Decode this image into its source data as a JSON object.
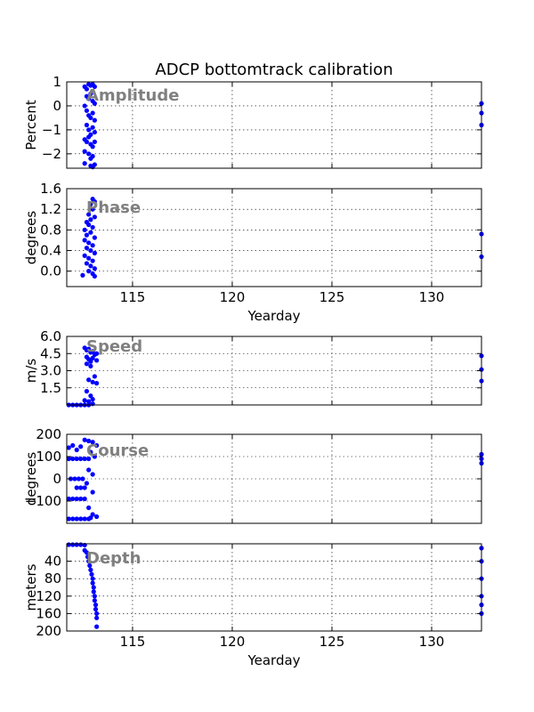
{
  "figure": {
    "title": "ADCP bottomtrack calibration",
    "colors": {
      "marker": "#0000ff",
      "panel_label": "#808080",
      "axis": "#000000",
      "grid": "#000000"
    }
  },
  "chart_data": [
    {
      "type": "scatter",
      "label": "Amplitude",
      "ylabel": "Percent",
      "xlabel": "",
      "xlim": [
        111.7,
        132.5
      ],
      "ylim": [
        -2.6,
        1.0
      ],
      "yticks": [
        "1",
        "0",
        "−1",
        "−2"
      ],
      "ytick_values": [
        1,
        0,
        -1,
        -2
      ],
      "xticks": [
        115,
        120,
        125,
        130
      ],
      "show_xtick_labels": false,
      "grid": true,
      "points": [
        [
          112.6,
          0.8
        ],
        [
          112.7,
          0.7
        ],
        [
          112.8,
          0.9
        ],
        [
          112.9,
          0.85
        ],
        [
          113.0,
          0.9
        ],
        [
          113.1,
          0.8
        ],
        [
          112.7,
          0.4
        ],
        [
          112.8,
          0.3
        ],
        [
          112.9,
          0.5
        ],
        [
          113.0,
          0.2
        ],
        [
          113.1,
          0.1
        ],
        [
          112.6,
          0.0
        ],
        [
          112.7,
          -0.2
        ],
        [
          112.8,
          -0.4
        ],
        [
          112.9,
          -0.5
        ],
        [
          113.0,
          -0.3
        ],
        [
          113.1,
          -0.6
        ],
        [
          112.7,
          -0.8
        ],
        [
          112.8,
          -1.0
        ],
        [
          112.9,
          -1.2
        ],
        [
          113.0,
          -0.9
        ],
        [
          113.1,
          -1.1
        ],
        [
          112.6,
          -1.4
        ],
        [
          112.7,
          -1.5
        ],
        [
          112.8,
          -1.3
        ],
        [
          112.9,
          -1.6
        ],
        [
          113.0,
          -1.7
        ],
        [
          113.1,
          -1.5
        ],
        [
          112.6,
          -1.9
        ],
        [
          112.8,
          -2.0
        ],
        [
          112.9,
          -2.2
        ],
        [
          113.0,
          -2.1
        ],
        [
          112.6,
          -2.4
        ],
        [
          112.9,
          -2.5
        ],
        [
          113.0,
          -2.55
        ],
        [
          113.1,
          -2.45
        ],
        [
          132.5,
          0.1
        ],
        [
          132.5,
          -0.3
        ],
        [
          132.5,
          -0.8
        ]
      ]
    },
    {
      "type": "scatter",
      "label": "Phase",
      "ylabel": "degrees",
      "xlabel": "Yearday",
      "xlim": [
        111.7,
        132.5
      ],
      "ylim": [
        -0.3,
        1.6
      ],
      "yticks": [
        "1.6",
        "1.2",
        "0.8",
        "0.4",
        "0.0"
      ],
      "ytick_values": [
        1.6,
        1.2,
        0.8,
        0.4,
        0.0
      ],
      "xticks": [
        115,
        120,
        125,
        130
      ],
      "show_xtick_labels": true,
      "grid": true,
      "points": [
        [
          113.0,
          1.4
        ],
        [
          113.1,
          1.35
        ],
        [
          112.9,
          1.3
        ],
        [
          113.0,
          1.2
        ],
        [
          112.8,
          1.1
        ],
        [
          112.9,
          1.0
        ],
        [
          113.1,
          1.05
        ],
        [
          112.7,
          0.95
        ],
        [
          112.8,
          0.9
        ],
        [
          113.0,
          0.85
        ],
        [
          112.6,
          0.8
        ],
        [
          112.7,
          0.7
        ],
        [
          112.9,
          0.75
        ],
        [
          113.1,
          0.65
        ],
        [
          112.6,
          0.6
        ],
        [
          112.8,
          0.55
        ],
        [
          113.0,
          0.5
        ],
        [
          112.7,
          0.45
        ],
        [
          112.9,
          0.4
        ],
        [
          113.1,
          0.35
        ],
        [
          112.6,
          0.3
        ],
        [
          112.8,
          0.25
        ],
        [
          113.0,
          0.2
        ],
        [
          112.7,
          0.15
        ],
        [
          112.9,
          0.1
        ],
        [
          113.1,
          0.05
        ],
        [
          112.8,
          0.0
        ],
        [
          113.0,
          -0.05
        ],
        [
          113.1,
          -0.1
        ],
        [
          112.5,
          -0.08
        ],
        [
          132.5,
          0.72
        ],
        [
          132.5,
          0.28
        ]
      ]
    },
    {
      "type": "scatter",
      "label": "Speed",
      "ylabel": "m/s",
      "xlabel": "",
      "xlim": [
        111.7,
        132.5
      ],
      "ylim": [
        0.0,
        6.0
      ],
      "yticks": [
        "6.0",
        "4.5",
        "3.0",
        "1.5"
      ],
      "ytick_values": [
        6.0,
        4.5,
        3.0,
        1.5
      ],
      "xticks": [
        115,
        120,
        125,
        130
      ],
      "show_xtick_labels": false,
      "grid": true,
      "points": [
        [
          111.8,
          0.0
        ],
        [
          112.0,
          0.0
        ],
        [
          112.2,
          0.0
        ],
        [
          112.4,
          0.0
        ],
        [
          112.6,
          0.0
        ],
        [
          112.8,
          0.0
        ],
        [
          113.0,
          0.1
        ],
        [
          112.6,
          5.0
        ],
        [
          112.7,
          4.8
        ],
        [
          112.8,
          4.9
        ],
        [
          112.9,
          4.6
        ],
        [
          113.0,
          4.7
        ],
        [
          113.1,
          4.4
        ],
        [
          113.2,
          4.5
        ],
        [
          112.7,
          4.2
        ],
        [
          112.8,
          4.0
        ],
        [
          112.9,
          3.8
        ],
        [
          113.0,
          4.1
        ],
        [
          113.2,
          3.9
        ],
        [
          112.7,
          3.6
        ],
        [
          112.9,
          3.4
        ],
        [
          113.1,
          2.5
        ],
        [
          112.8,
          2.2
        ],
        [
          113.0,
          2.0
        ],
        [
          113.2,
          1.9
        ],
        [
          112.7,
          1.2
        ],
        [
          112.9,
          0.8
        ],
        [
          113.0,
          0.5
        ],
        [
          112.8,
          0.3
        ],
        [
          112.6,
          0.4
        ],
        [
          132.5,
          4.3
        ],
        [
          132.5,
          3.1
        ],
        [
          132.5,
          2.1
        ]
      ]
    },
    {
      "type": "scatter",
      "label": "Course",
      "ylabel": "degrees",
      "xlabel": "",
      "xlim": [
        111.7,
        132.5
      ],
      "ylim": [
        -200,
        200
      ],
      "yticks": [
        "200",
        "100",
        "0",
        "−100"
      ],
      "ytick_values": [
        200,
        100,
        0,
        -100
      ],
      "xticks": [
        115,
        120,
        125,
        130
      ],
      "show_xtick_labels": false,
      "grid": true,
      "points": [
        [
          111.8,
          140
        ],
        [
          112.0,
          150
        ],
        [
          112.2,
          130
        ],
        [
          112.4,
          145
        ],
        [
          111.8,
          90
        ],
        [
          112.0,
          90
        ],
        [
          112.2,
          90
        ],
        [
          112.4,
          90
        ],
        [
          112.6,
          90
        ],
        [
          112.8,
          90
        ],
        [
          111.9,
          0
        ],
        [
          112.1,
          0
        ],
        [
          112.3,
          0
        ],
        [
          112.5,
          0
        ],
        [
          112.2,
          -40
        ],
        [
          112.4,
          -40
        ],
        [
          112.6,
          -40
        ],
        [
          111.8,
          -90
        ],
        [
          112.0,
          -90
        ],
        [
          112.2,
          -90
        ],
        [
          112.4,
          -90
        ],
        [
          112.6,
          -90
        ],
        [
          111.8,
          -180
        ],
        [
          112.0,
          -180
        ],
        [
          112.2,
          -180
        ],
        [
          112.4,
          -180
        ],
        [
          112.6,
          -180
        ],
        [
          112.8,
          -180
        ],
        [
          112.6,
          175
        ],
        [
          112.8,
          170
        ],
        [
          113.0,
          165
        ],
        [
          113.2,
          150
        ],
        [
          112.9,
          120
        ],
        [
          113.1,
          100
        ],
        [
          112.8,
          40
        ],
        [
          113.0,
          20
        ],
        [
          112.7,
          -20
        ],
        [
          113.0,
          -60
        ],
        [
          112.8,
          -130
        ],
        [
          113.0,
          -160
        ],
        [
          113.2,
          -170
        ],
        [
          112.9,
          -175
        ],
        [
          132.5,
          110
        ],
        [
          132.5,
          90
        ],
        [
          132.5,
          70
        ]
      ]
    },
    {
      "type": "scatter",
      "label": "Depth",
      "ylabel": "meters",
      "xlabel": "Yearday",
      "xlim": [
        111.7,
        132.5
      ],
      "ylim": [
        200,
        0
      ],
      "yticks": [
        "40",
        "80",
        "120",
        "160",
        "200"
      ],
      "ytick_values": [
        40,
        80,
        120,
        160,
        200
      ],
      "xticks": [
        115,
        120,
        125,
        130
      ],
      "show_xtick_labels": true,
      "grid": true,
      "points": [
        [
          111.8,
          2
        ],
        [
          112.0,
          2
        ],
        [
          112.2,
          2
        ],
        [
          112.4,
          2
        ],
        [
          112.6,
          3
        ],
        [
          112.6,
          15
        ],
        [
          112.7,
          20
        ],
        [
          112.75,
          30
        ],
        [
          112.8,
          40
        ],
        [
          112.85,
          50
        ],
        [
          112.9,
          60
        ],
        [
          112.95,
          70
        ],
        [
          113.0,
          80
        ],
        [
          113.0,
          90
        ],
        [
          113.05,
          100
        ],
        [
          113.05,
          110
        ],
        [
          113.1,
          120
        ],
        [
          113.1,
          130
        ],
        [
          113.15,
          140
        ],
        [
          113.15,
          150
        ],
        [
          113.2,
          160
        ],
        [
          113.2,
          170
        ],
        [
          113.2,
          190
        ],
        [
          132.5,
          10
        ],
        [
          132.5,
          40
        ],
        [
          132.5,
          80
        ],
        [
          132.5,
          120
        ],
        [
          132.5,
          140
        ],
        [
          132.5,
          160
        ]
      ]
    }
  ]
}
